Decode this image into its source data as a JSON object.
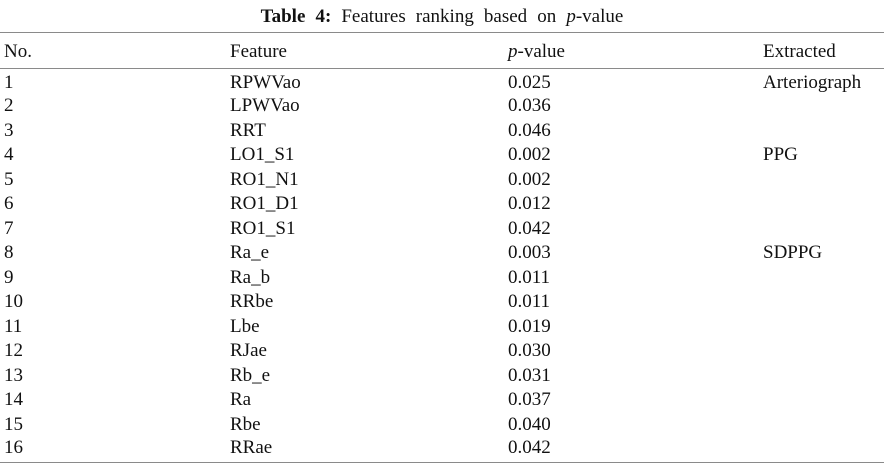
{
  "table": {
    "title": {
      "label": "Table 4:",
      "text_before": "Features ranking based on",
      "p_italic": "p",
      "p_suffix": "-value"
    },
    "header": {
      "no": "No.",
      "feature": "Feature",
      "p_italic": "p",
      "p_suffix": "-value",
      "extracted": "Extracted"
    },
    "rows": [
      {
        "no": "1",
        "feature": "RPWVao",
        "p_value": "0.025",
        "extracted": "Arteriograph"
      },
      {
        "no": "2",
        "feature": "LPWVao",
        "p_value": "0.036",
        "extracted": ""
      },
      {
        "no": "3",
        "feature": "RRT",
        "p_value": "0.046",
        "extracted": ""
      },
      {
        "no": "4",
        "feature": "LO1_S1",
        "p_value": "0.002",
        "extracted": "PPG"
      },
      {
        "no": "5",
        "feature": "RO1_N1",
        "p_value": "0.002",
        "extracted": ""
      },
      {
        "no": "6",
        "feature": "RO1_D1",
        "p_value": "0.012",
        "extracted": ""
      },
      {
        "no": "7",
        "feature": "RO1_S1",
        "p_value": "0.042",
        "extracted": ""
      },
      {
        "no": "8",
        "feature": "Ra_e",
        "p_value": "0.003",
        "extracted": "SDPPG"
      },
      {
        "no": "9",
        "feature": "Ra_b",
        "p_value": "0.011",
        "extracted": ""
      },
      {
        "no": "10",
        "feature": "RRbe",
        "p_value": "0.011",
        "extracted": ""
      },
      {
        "no": "11",
        "feature": "Lbe",
        "p_value": "0.019",
        "extracted": ""
      },
      {
        "no": "12",
        "feature": "RJae",
        "p_value": "0.030",
        "extracted": ""
      },
      {
        "no": "13",
        "feature": "Rb_e",
        "p_value": "0.031",
        "extracted": ""
      },
      {
        "no": "14",
        "feature": "Ra",
        "p_value": "0.037",
        "extracted": ""
      },
      {
        "no": "15",
        "feature": "Rbe",
        "p_value": "0.040",
        "extracted": ""
      },
      {
        "no": "16",
        "feature": "RRae",
        "p_value": "0.042",
        "extracted": ""
      }
    ]
  }
}
